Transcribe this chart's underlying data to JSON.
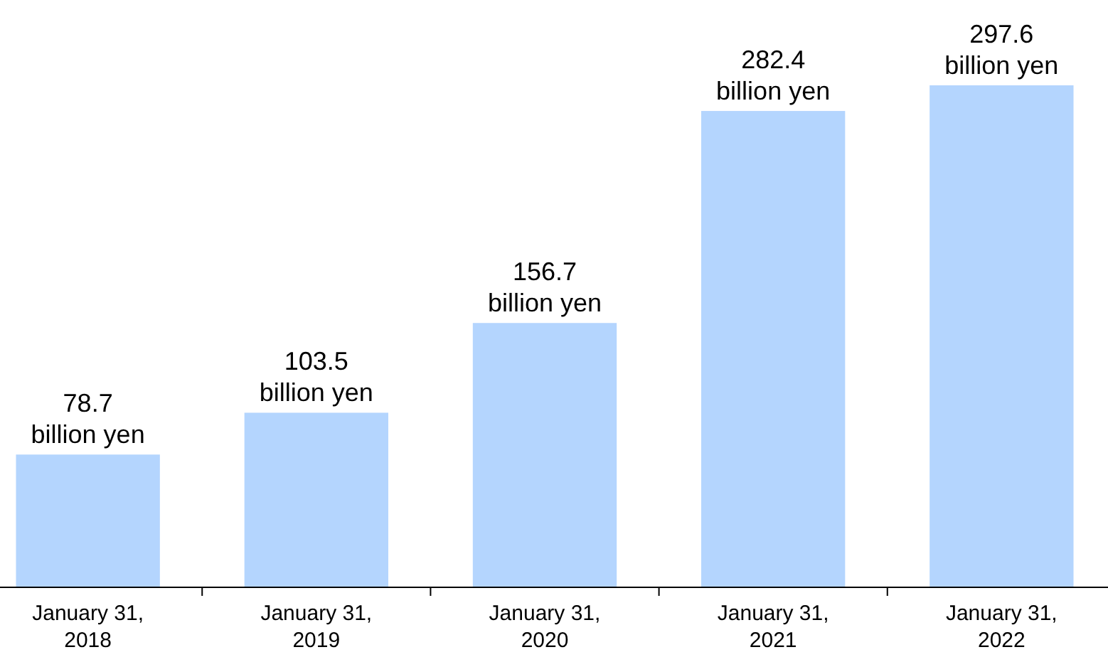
{
  "chart_data": {
    "type": "bar",
    "categories": [
      "January 31, 2018",
      "January 31, 2019",
      "January 31, 2020",
      "January 31, 2021",
      "January 31, 2022"
    ],
    "values": [
      78.7,
      103.5,
      156.7,
      282.4,
      297.6
    ],
    "value_labels": [
      "78.7 billion yen",
      "103.5 billion yen",
      "156.7 billion yen",
      "282.4 billion yen",
      "297.6 billion yen"
    ],
    "color": "#b4d5fe"
  }
}
